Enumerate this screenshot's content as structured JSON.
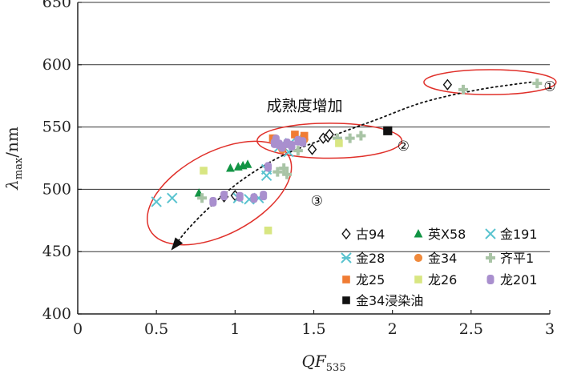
{
  "chart_data": {
    "type": "scatter",
    "title": "",
    "xlabel": "QF",
    "xlabel_sub": "535",
    "ylabel": "λ",
    "ylabel_sub": "max",
    "ylabel_unit": "/nm",
    "xlim": [
      0,
      3
    ],
    "ylim": [
      400,
      650
    ],
    "xticks": [
      "0",
      "0.5",
      "1",
      "1.5",
      "2",
      "2.5",
      "3"
    ],
    "xtick_values": [
      0,
      0.5,
      1,
      1.5,
      2,
      2.5,
      3
    ],
    "yticks": [
      "400",
      "450",
      "500",
      "550",
      "600",
      "650"
    ],
    "ytick_values": [
      400,
      450,
      500,
      550,
      600,
      650
    ],
    "grid": "horizontal",
    "legend_position": "bottom-right",
    "series": [
      {
        "name": "古94",
        "marker": "diamond-open",
        "color": "#111111",
        "x": [
          0.93,
          1.0,
          1.49,
          1.56,
          1.59,
          1.6,
          2.35
        ],
        "y": [
          494,
          495,
          532,
          541,
          542,
          544,
          584
        ]
      },
      {
        "name": "英X58",
        "marker": "triangle",
        "color": "#129444",
        "x": [
          0.77,
          0.97,
          1.02,
          1.05,
          1.08
        ],
        "y": [
          497,
          517,
          518,
          519,
          520
        ]
      },
      {
        "name": "金191",
        "marker": "x",
        "color": "#59c3cf",
        "x": [
          0.5,
          0.6,
          1.02,
          1.09,
          1.15,
          1.2,
          1.2,
          1.34
        ],
        "y": [
          490,
          493,
          493,
          492,
          493,
          511,
          516,
          530
        ]
      },
      {
        "name": "金28",
        "marker": "asterisk",
        "color": "#59c3cf",
        "x": [
          1.28,
          1.35
        ],
        "y": [
          534,
          537
        ]
      },
      {
        "name": "金34",
        "marker": "circle",
        "color": "#f08a3c",
        "x": [
          1.3,
          1.44
        ],
        "y": [
          532,
          540
        ]
      },
      {
        "name": "齐平1",
        "marker": "plus",
        "color": "#a9c4a6",
        "x": [
          0.79,
          1.27,
          1.31,
          1.33,
          1.4,
          1.42,
          1.65,
          1.73,
          1.8,
          2.45,
          2.92
        ],
        "y": [
          493,
          514,
          517,
          512,
          531,
          540,
          541,
          541,
          543,
          580,
          585
        ]
      },
      {
        "name": "龙25",
        "marker": "square",
        "color": "#f07c34",
        "x": [
          1.24,
          1.38,
          1.44
        ],
        "y": [
          541,
          544,
          543
        ]
      },
      {
        "name": "龙26",
        "marker": "square",
        "color": "#d8e682",
        "x": [
          0.8,
          1.21,
          1.66
        ],
        "y": [
          515,
          467,
          537
        ]
      },
      {
        "name": "龙201",
        "marker": "rounded",
        "color": "#a98fce",
        "x": [
          0.86,
          0.93,
          1.03,
          1.12,
          1.18,
          1.21,
          1.25,
          1.26,
          1.28,
          1.3,
          1.33,
          1.36,
          1.4,
          1.43
        ],
        "y": [
          490,
          495,
          494,
          493,
          495,
          518,
          537,
          540,
          536,
          534,
          537,
          535,
          539,
          538
        ]
      },
      {
        "name": "金34浸染油",
        "marker": "square",
        "color": "#111111",
        "x": [
          1.97
        ],
        "y": [
          547
        ]
      }
    ],
    "trend_curve": {
      "style": "dotted",
      "x": [
        2.88,
        2.55,
        2.2,
        1.9,
        1.6,
        1.3,
        1.05,
        0.85,
        0.7,
        0.6
      ],
      "y": [
        586,
        580,
        570,
        556,
        542,
        527,
        508,
        487,
        468,
        452
      ],
      "arrow_at_end": true
    },
    "ellipses": [
      {
        "label": "①",
        "cx": 2.62,
        "cy": 586,
        "rx": 0.42,
        "ry": 10
      },
      {
        "label": "②",
        "cx": 1.6,
        "cy": 539,
        "rx": 0.46,
        "ry": 14
      },
      {
        "label": "③",
        "cx": 0.9,
        "cy": 497,
        "rx": 0.5,
        "ry": 33,
        "tilt_deg": -28
      }
    ],
    "annotations": [
      {
        "text": "成熟度增加",
        "x": 1.2,
        "y": 563
      },
      {
        "text": "①",
        "x": 3.0,
        "y": 579
      },
      {
        "text": "②",
        "x": 2.07,
        "y": 531
      },
      {
        "text": "③",
        "x": 1.52,
        "y": 487
      }
    ],
    "colors": {
      "ellipse": "#e0302a",
      "grid": "#333333",
      "axis": "#222222"
    }
  }
}
